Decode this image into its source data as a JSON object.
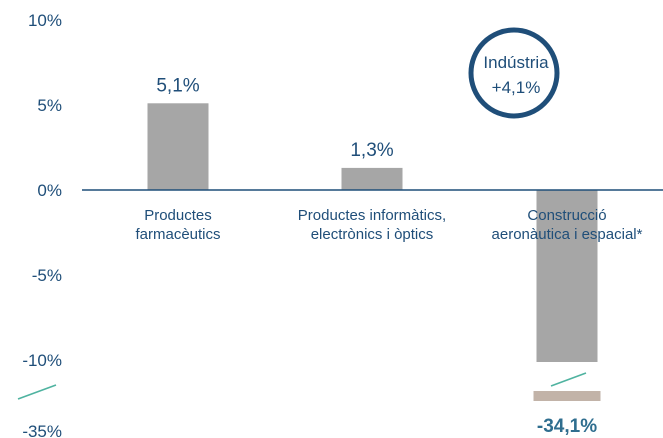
{
  "chart_data": {
    "type": "bar",
    "categories": [
      [
        "Productes",
        "farmacèutics"
      ],
      [
        "Productes informàtics,",
        "electrònics i òptics"
      ],
      [
        "Construcció",
        "aeronàutica i espacial*"
      ]
    ],
    "values": [
      5.1,
      1.3,
      -34.1
    ],
    "data_labels": [
      "5,1%",
      "1,3%",
      "-34,1%"
    ],
    "y_ticks": [
      {
        "value": 10,
        "label": "10%"
      },
      {
        "value": 5,
        "label": "5%"
      },
      {
        "value": 0,
        "label": "0%"
      },
      {
        "value": -5,
        "label": "-5%"
      },
      {
        "value": -10,
        "label": "-10%"
      },
      {
        "value": -35,
        "label": "-35%"
      }
    ],
    "ylim": [
      -35,
      10
    ],
    "axis_break": {
      "from": -10,
      "to": -35
    },
    "grid": false,
    "annotation": {
      "lines": [
        "Indústria",
        "+4,1%"
      ]
    },
    "colors": {
      "bar": "#a6a6a6",
      "bar_tail": "#c2b3a8",
      "axis": "#1f4e79",
      "text": "#1f4e79",
      "highlight_label": "#2f6e8f",
      "callout_ring": "#1f4e79",
      "break_mark": "#4fb3a0"
    }
  }
}
